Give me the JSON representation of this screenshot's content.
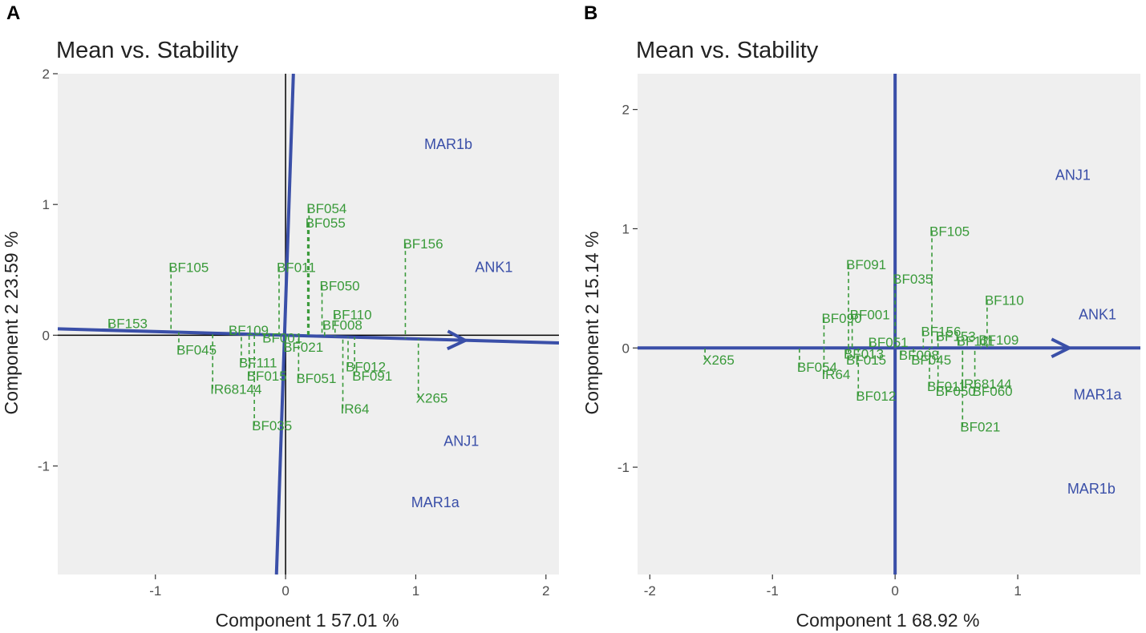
{
  "colors": {
    "panel_bg": "#efefef",
    "genotype": "#3a9a3a",
    "environment": "#3a4fa8",
    "zero_line": "#000000",
    "text": "#222222"
  },
  "chart_data": [
    {
      "type": "scatter",
      "panel_letter": "A",
      "title": "Mean vs. Stability",
      "xlabel": "Component 1 57.01 %",
      "ylabel": "Component 2 23.59 %",
      "xlim": [
        -1.75,
        2.1
      ],
      "ylim": [
        -1.83,
        2.0
      ],
      "xticks": [
        -1,
        0,
        1,
        2
      ],
      "yticks": [
        -1,
        0,
        1,
        2
      ],
      "zero_lines": true,
      "aec_abscissa": {
        "angle_deg": -1.6,
        "arrow_to": [
          1.38,
          -0.04
        ]
      },
      "aec_ordinate": {
        "from": [
          -0.07,
          -1.83
        ],
        "to": [
          0.06,
          2.0
        ]
      },
      "genotypes": [
        {
          "name": "BF153",
          "x": -1.35,
          "y": 0.09
        },
        {
          "name": "BF105",
          "x": -0.88,
          "y": 0.52
        },
        {
          "name": "BF045",
          "x": -0.82,
          "y": -0.11
        },
        {
          "name": "BF109",
          "x": -0.42,
          "y": 0.04
        },
        {
          "name": "IR68144",
          "x": -0.56,
          "y": -0.41
        },
        {
          "name": "BF111",
          "x": -0.34,
          "y": -0.21
        },
        {
          "name": "BF015",
          "x": -0.28,
          "y": -0.31
        },
        {
          "name": "BF035",
          "x": -0.24,
          "y": -0.69
        },
        {
          "name": "BF011",
          "x": -0.05,
          "y": 0.52
        },
        {
          "name": "BF054",
          "x": 0.18,
          "y": 0.97
        },
        {
          "name": "BF055",
          "x": 0.17,
          "y": 0.86
        },
        {
          "name": "BF001",
          "x": -0.16,
          "y": -0.02
        },
        {
          "name": "BF021",
          "x": 0.0,
          "y": -0.09
        },
        {
          "name": "BF050",
          "x": 0.28,
          "y": 0.38
        },
        {
          "name": "BF110",
          "x": 0.38,
          "y": 0.16
        },
        {
          "name": "BF008",
          "x": 0.3,
          "y": 0.08
        },
        {
          "name": "BF051",
          "x": 0.1,
          "y": -0.33
        },
        {
          "name": "BF012",
          "x": 0.48,
          "y": -0.24
        },
        {
          "name": "BF091",
          "x": 0.53,
          "y": -0.31
        },
        {
          "name": "IR64",
          "x": 0.44,
          "y": -0.56
        },
        {
          "name": "BF156",
          "x": 0.92,
          "y": 0.7
        },
        {
          "name": "X265",
          "x": 1.02,
          "y": -0.48
        }
      ],
      "environments": [
        {
          "name": "MAR1b",
          "x": 1.25,
          "y": 1.46
        },
        {
          "name": "ANK1",
          "x": 1.6,
          "y": 0.52
        },
        {
          "name": "ANJ1",
          "x": 1.35,
          "y": -0.81
        },
        {
          "name": "MAR1a",
          "x": 1.15,
          "y": -1.28
        }
      ]
    },
    {
      "type": "scatter",
      "panel_letter": "B",
      "title": "Mean vs. Stability",
      "xlabel": "Component 1 68.92 %",
      "ylabel": "Component 2 15.14 %",
      "xlim": [
        -2.1,
        2.0
      ],
      "ylim": [
        -1.9,
        2.3
      ],
      "xticks": [
        -2,
        -1,
        0,
        1
      ],
      "yticks": [
        -1,
        0,
        1,
        2
      ],
      "zero_lines": false,
      "aec_abscissa": {
        "angle_deg": 0,
        "arrow_to": [
          1.42,
          0.0
        ]
      },
      "aec_ordinate": {
        "from": [
          0.0,
          -1.9
        ],
        "to": [
          0.0,
          2.3
        ]
      },
      "genotypes": [
        {
          "name": "X265",
          "x": -1.55,
          "y": -0.1
        },
        {
          "name": "BF054",
          "x": -0.78,
          "y": -0.16
        },
        {
          "name": "BF090",
          "x": -0.58,
          "y": 0.25
        },
        {
          "name": "IR64",
          "x": -0.58,
          "y": -0.22
        },
        {
          "name": "BF091",
          "x": -0.38,
          "y": 0.7
        },
        {
          "name": "BF001",
          "x": -0.35,
          "y": 0.28
        },
        {
          "name": "BF013",
          "x": -0.4,
          "y": -0.05
        },
        {
          "name": "BF015",
          "x": -0.38,
          "y": -0.1
        },
        {
          "name": "BF012",
          "x": -0.3,
          "y": -0.4
        },
        {
          "name": "BF035",
          "x": 0.0,
          "y": 0.58
        },
        {
          "name": "BF051",
          "x": -0.2,
          "y": 0.05
        },
        {
          "name": "BF008",
          "x": 0.05,
          "y": -0.06
        },
        {
          "name": "BF045",
          "x": 0.15,
          "y": -0.1
        },
        {
          "name": "BF105",
          "x": 0.3,
          "y": 0.98
        },
        {
          "name": "BF156",
          "x": 0.23,
          "y": 0.14
        },
        {
          "name": "BF153",
          "x": 0.35,
          "y": 0.1
        },
        {
          "name": "BF111",
          "x": 0.52,
          "y": 0.06
        },
        {
          "name": "BF011",
          "x": 0.28,
          "y": -0.32
        },
        {
          "name": "BF050",
          "x": 0.35,
          "y": -0.36
        },
        {
          "name": "BF110",
          "x": 0.75,
          "y": 0.4
        },
        {
          "name": "BF109",
          "x": 0.7,
          "y": 0.07
        },
        {
          "name": "IR68144",
          "x": 0.55,
          "y": -0.3
        },
        {
          "name": "BF060",
          "x": 0.65,
          "y": -0.36
        },
        {
          "name": "BF021",
          "x": 0.55,
          "y": -0.66
        }
      ],
      "environments": [
        {
          "name": "ANJ1",
          "x": 1.45,
          "y": 1.45
        },
        {
          "name": "ANK1",
          "x": 1.65,
          "y": 0.28
        },
        {
          "name": "MAR1a",
          "x": 1.65,
          "y": -0.39
        },
        {
          "name": "MAR1b",
          "x": 1.6,
          "y": -1.18
        }
      ]
    }
  ]
}
